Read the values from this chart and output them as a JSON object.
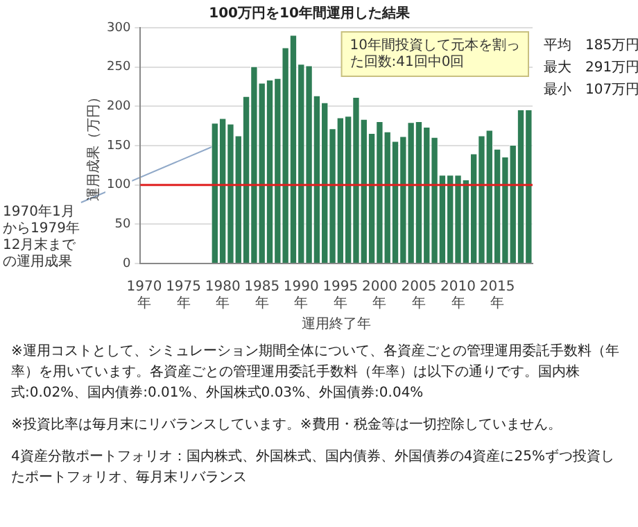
{
  "chart_data": {
    "type": "bar",
    "title": "100万円を10年間運用した結果",
    "xlabel": "運用終了年",
    "ylabel": "運用成果（万円）",
    "x": [
      1979,
      1980,
      1981,
      1982,
      1983,
      1984,
      1985,
      1986,
      1987,
      1988,
      1989,
      1990,
      1991,
      1992,
      1993,
      1994,
      1995,
      1996,
      1997,
      1998,
      1999,
      2000,
      2001,
      2002,
      2003,
      2004,
      2005,
      2006,
      2007,
      2008,
      2009,
      2010,
      2011,
      2012,
      2013,
      2014,
      2015,
      2016,
      2017,
      2018,
      2019
    ],
    "values": [
      179,
      185,
      178,
      163,
      213,
      251,
      230,
      234,
      236,
      275,
      291,
      254,
      252,
      214,
      205,
      172,
      186,
      188,
      212,
      184,
      166,
      181,
      168,
      156,
      162,
      180,
      181,
      174,
      161,
      113,
      113,
      113,
      107,
      140,
      163,
      170,
      146,
      136,
      151,
      196,
      196
    ],
    "color": "#2e7d55",
    "xlim": [
      1969.5,
      2019.5
    ],
    "xticks": [
      {
        "value": 1970,
        "label": "1970年"
      },
      {
        "value": 1975,
        "label": "1975年"
      },
      {
        "value": 1980,
        "label": "1980年"
      },
      {
        "value": 1985,
        "label": "1985年"
      },
      {
        "value": 1990,
        "label": "1990年"
      },
      {
        "value": 1995,
        "label": "1995年"
      },
      {
        "value": 2000,
        "label": "2000年"
      },
      {
        "value": 2005,
        "label": "2005年"
      },
      {
        "value": 2010,
        "label": "2010年"
      },
      {
        "value": 2015,
        "label": "2015年"
      }
    ],
    "ylim": [
      0,
      300
    ],
    "yticks": [
      0,
      50,
      100,
      150,
      200,
      250,
      300
    ],
    "grid": "y",
    "ref_lines": [
      {
        "axis": "y",
        "value": 100,
        "color": "#e02020"
      }
    ],
    "annotations": [
      "10年間投資して元本を割った回数:41回中0回",
      "平均　185万円",
      "最大　291万円",
      "最小　107万円",
      {
        "text": "1970年1月から1979年12月末までの運用成果",
        "x": 1979,
        "y": 150
      },
      "※運用コストとして、シミュレーション期間全体について、各資産ごとの管理運用委託手数料（年率）を用いています。各資産ごとの管理運用委託手数料（年率）は以下の通りです。国内株式:0.02%、国内債券:0.01%、外国株式0.03%、外国債券:0.04%",
      "※投資比率は毎月末にリバランスしています。※費用・税金等は一切控除していません。",
      "4資産分散ポートフォリオ：国内株式、外国株式、国内債券、外国債券の4資産に25%ずつ投資したポートフォリオ、毎月末リバランス"
    ]
  }
}
